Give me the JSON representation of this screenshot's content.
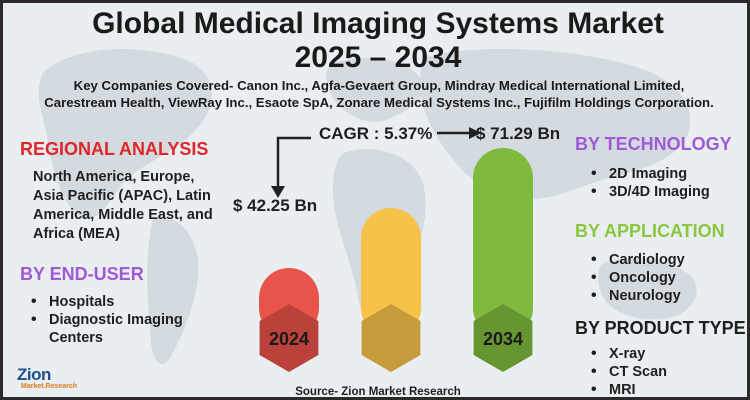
{
  "title": {
    "line1": "Global Medical Imaging Systems Market",
    "line2": "2025 – 2034"
  },
  "companies": "Key Companies Covered- Canon Inc., Agfa-Gevaert Group, Mindray Medical International Limited, Carestream Health, ViewRay Inc., Esaote SpA, Zonare Medical Systems Inc., Fujifilm Holdings Corporation.",
  "regional": {
    "heading": "REGIONAL ANALYSIS",
    "text": "North America, Europe, Asia Pacific (APAC), Latin America, Middle East, and Africa (MEA)"
  },
  "end_user": {
    "heading": "BY END-USER",
    "items": [
      "Hospitals",
      "Diagnostic Imaging Centers"
    ]
  },
  "technology": {
    "heading": "BY TECHNOLOGY",
    "items": [
      "2D Imaging",
      "3D/4D Imaging"
    ]
  },
  "application": {
    "heading": "BY APPLICATION",
    "items": [
      "Cardiology",
      "Oncology",
      "Neurology"
    ]
  },
  "product_type": {
    "heading": "BY PRODUCT TYPE",
    "items": [
      "X-ray",
      "CT Scan",
      "MRI"
    ]
  },
  "chart_data": {
    "type": "bar",
    "categories": [
      "2024",
      "",
      "2034"
    ],
    "values": [
      42.25,
      null,
      71.29
    ],
    "value_labels": [
      "$ 42.25 Bn",
      "",
      "$ 71.29 Bn"
    ],
    "bar_colors": [
      "#e8534a",
      "#f6c24a",
      "#7fba3f"
    ],
    "cagr_label": "CAGR : 5.37%",
    "title": "",
    "xlabel": "",
    "ylabel": ""
  },
  "source": "Source- Zion Market Research",
  "logo": {
    "name": "Zion",
    "sub": "Market.Research"
  },
  "colors": {
    "red": "#e0262b",
    "purple": "#a05ad6",
    "green": "#8cc63f"
  },
  "icons": [
    "world-map-background",
    "arrow-right-icon"
  ]
}
